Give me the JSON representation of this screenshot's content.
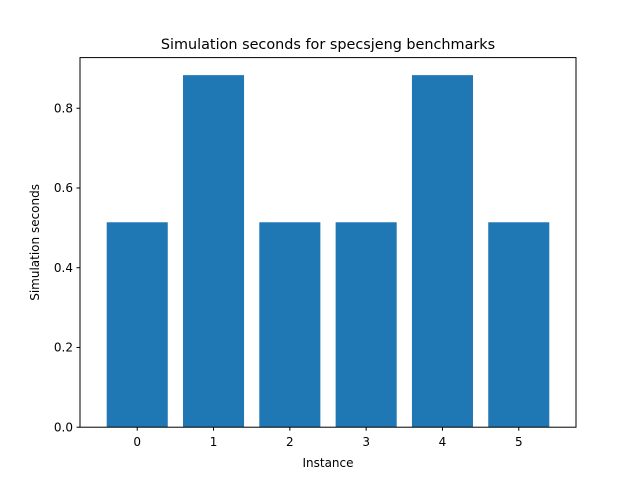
{
  "chart_data": {
    "type": "bar",
    "title": "Simulation seconds for specsjeng benchmarks",
    "xlabel": "Instance",
    "ylabel": "Simulation seconds",
    "categories": [
      "0",
      "1",
      "2",
      "3",
      "4",
      "5"
    ],
    "values": [
      0.514,
      0.883,
      0.514,
      0.514,
      0.883,
      0.514
    ],
    "ylim": [
      0,
      0.927
    ],
    "yticks": [
      0.0,
      0.2,
      0.4,
      0.6,
      0.8
    ],
    "ytick_labels": [
      "0.0",
      "0.2",
      "0.4",
      "0.6",
      "0.8"
    ],
    "grid": false,
    "legend": "none",
    "bar_color": "#1f77b4"
  }
}
